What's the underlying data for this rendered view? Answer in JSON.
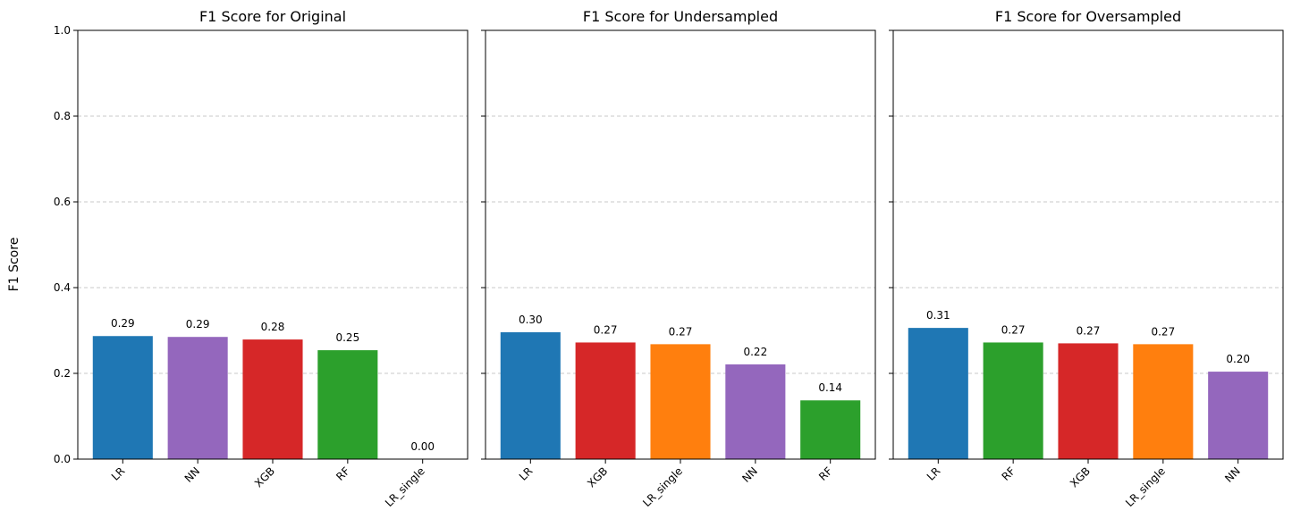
{
  "figure": {
    "ylabel": "F1 Score"
  },
  "colors": {
    "LR": "#1f77b4",
    "NN": "#9467bd",
    "XGB": "#d62728",
    "RF": "#2ca02c",
    "LR_single": "#ff7f0e",
    "grid": "#c8c8c8"
  },
  "chart_data": [
    {
      "type": "bar",
      "title": "F1 Score for Original",
      "categories": [
        "LR",
        "NN",
        "XGB",
        "RF",
        "LR_single"
      ],
      "values": [
        0.287,
        0.285,
        0.279,
        0.254,
        0.0
      ],
      "labels": [
        "0.29",
        "0.29",
        "0.28",
        "0.25",
        "0.00"
      ],
      "ylim": [
        0,
        1
      ],
      "yticks": [
        "0.0",
        "0.2",
        "0.4",
        "0.6",
        "0.8",
        "1.0"
      ],
      "grid": "y-dashed"
    },
    {
      "type": "bar",
      "title": "F1 Score for Undersampled",
      "categories": [
        "LR",
        "XGB",
        "LR_single",
        "NN",
        "RF"
      ],
      "values": [
        0.296,
        0.272,
        0.268,
        0.221,
        0.137
      ],
      "labels": [
        "0.30",
        "0.27",
        "0.27",
        "0.22",
        "0.14"
      ],
      "ylim": [
        0,
        1
      ],
      "grid": "y-dashed"
    },
    {
      "type": "bar",
      "title": "F1 Score for Oversampled",
      "categories": [
        "LR",
        "RF",
        "XGB",
        "LR_single",
        "NN"
      ],
      "values": [
        0.306,
        0.272,
        0.27,
        0.268,
        0.204
      ],
      "labels": [
        "0.31",
        "0.27",
        "0.27",
        "0.27",
        "0.20"
      ],
      "ylim": [
        0,
        1
      ],
      "grid": "y-dashed"
    }
  ]
}
